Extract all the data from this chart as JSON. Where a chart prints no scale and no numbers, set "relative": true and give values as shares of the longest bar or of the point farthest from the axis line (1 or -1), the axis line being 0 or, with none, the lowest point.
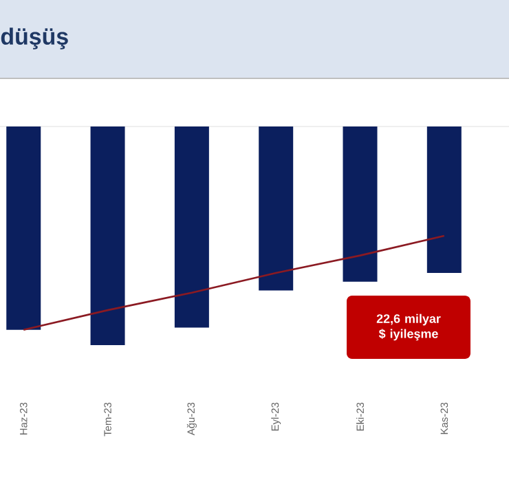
{
  "chart_data": {
    "type": "bar",
    "title": "düşüş",
    "relative": true,
    "categories": [
      "Haz-23",
      "Tem-23",
      "Ağu-23",
      "Eyl-23",
      "Eki-23",
      "Kas-23"
    ],
    "series": [
      {
        "color": "#0b1f5e",
        "values": [
          -0.93,
          -1,
          -0.92,
          -0.75,
          -0.71,
          -0.67
        ]
      },
      {
        "type": "line",
        "color": "#8b1a22",
        "values": [
          -0.93,
          -0.84,
          -0.76,
          -0.67,
          -0.59,
          -0.5
        ]
      }
    ],
    "annotations": [
      "22,6 milyar $ iyileşme"
    ]
  }
}
